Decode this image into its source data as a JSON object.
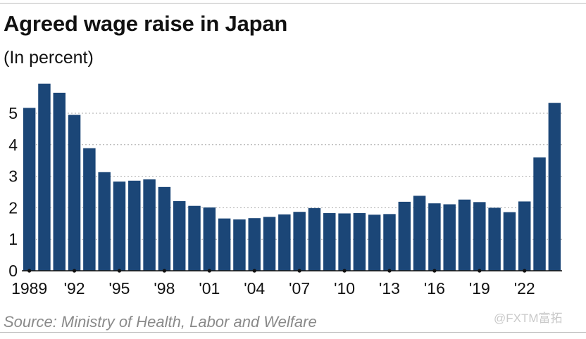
{
  "chart_data": {
    "type": "bar",
    "title": "Agreed wage raise in Japan",
    "subtitle": "(In percent)",
    "source": "Source: Ministry of Health, Labor and Welfare",
    "categories": [
      "1989",
      "1990",
      "1991",
      "1992",
      "1993",
      "1994",
      "1995",
      "1996",
      "1997",
      "1998",
      "1999",
      "2000",
      "2001",
      "2002",
      "2003",
      "2004",
      "2005",
      "2006",
      "2007",
      "2008",
      "2009",
      "2010",
      "2011",
      "2012",
      "2013",
      "2014",
      "2015",
      "2016",
      "2017",
      "2018",
      "2019",
      "2020",
      "2021",
      "2022",
      "2023",
      "2024"
    ],
    "values": [
      5.17,
      5.94,
      5.65,
      4.95,
      3.89,
      3.13,
      2.83,
      2.86,
      2.9,
      2.66,
      2.21,
      2.06,
      2.01,
      1.66,
      1.63,
      1.67,
      1.71,
      1.79,
      1.87,
      1.99,
      1.83,
      1.82,
      1.83,
      1.78,
      1.8,
      2.19,
      2.38,
      2.14,
      2.11,
      2.26,
      2.18,
      2.0,
      1.86,
      2.2,
      3.6,
      5.33
    ],
    "ylim": [
      0,
      6
    ],
    "yticks": [
      0,
      1,
      2,
      3,
      4,
      5
    ],
    "xtick_labels": [
      {
        "index": 0,
        "label": "1989"
      },
      {
        "index": 3,
        "label": "'92"
      },
      {
        "index": 6,
        "label": "'95"
      },
      {
        "index": 9,
        "label": "'98"
      },
      {
        "index": 12,
        "label": "'01"
      },
      {
        "index": 15,
        "label": "'04"
      },
      {
        "index": 18,
        "label": "'07"
      },
      {
        "index": 21,
        "label": "'10"
      },
      {
        "index": 24,
        "label": "'13"
      },
      {
        "index": 27,
        "label": "'16"
      },
      {
        "index": 30,
        "label": "'19"
      },
      {
        "index": 33,
        "label": "'22"
      }
    ],
    "grid": "horizontal-dotted",
    "bar_color": "#1b4677"
  },
  "watermark": "@FXTM富拓"
}
